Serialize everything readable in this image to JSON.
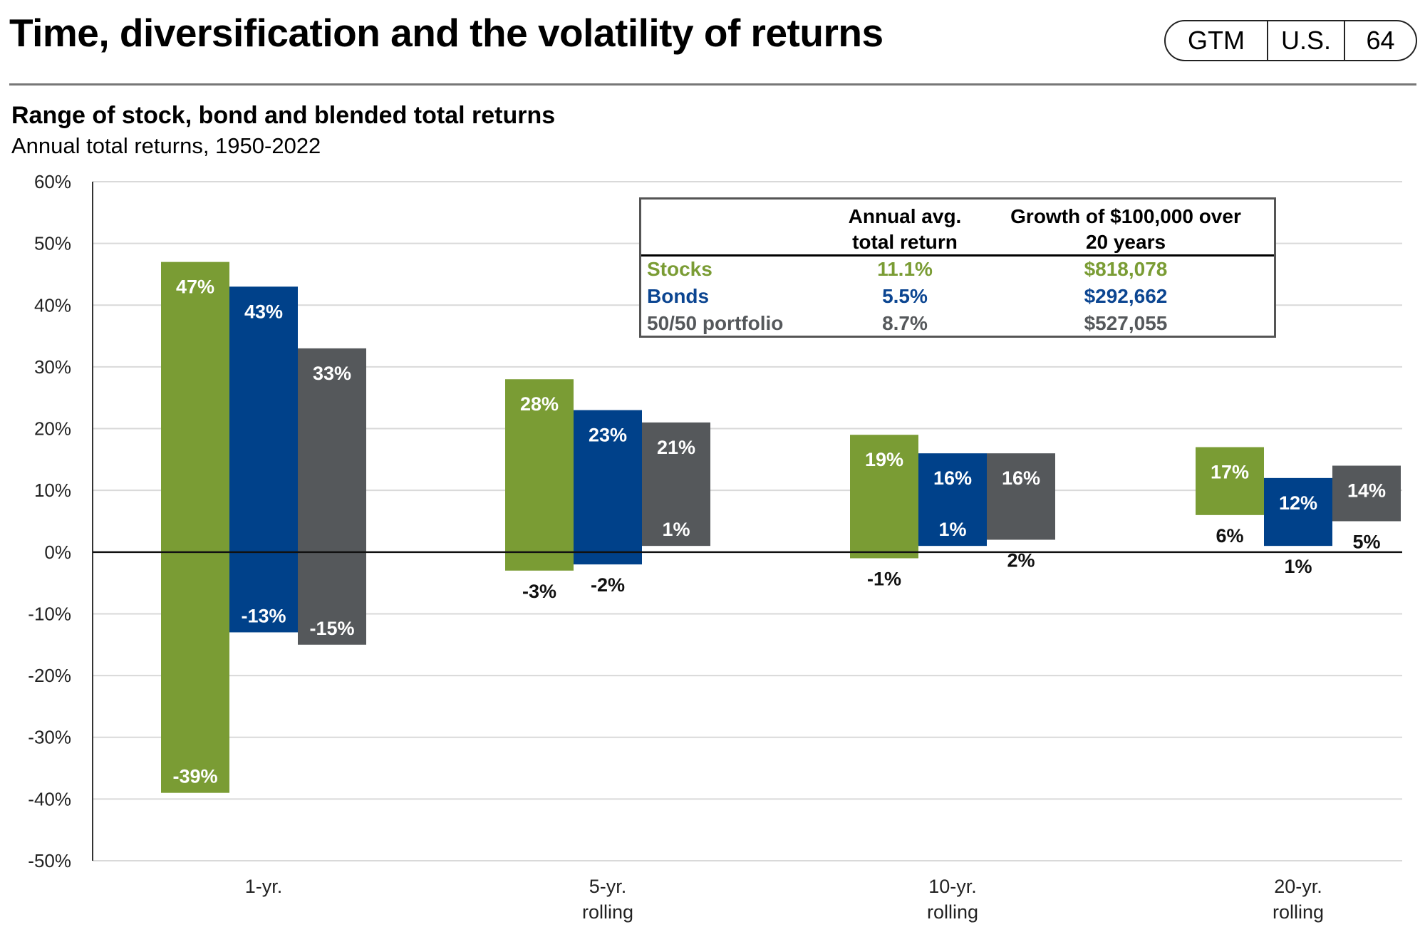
{
  "header": {
    "title": "Time, diversification and the volatility of returns",
    "badge": [
      "GTM",
      "U.S.",
      "64"
    ]
  },
  "subtitle": "Range of stock, bond and blended total returns",
  "subsubtitle": "Annual total returns, 1950-2022",
  "table": {
    "col_headers": [
      [
        "Annual avg.",
        "total return"
      ],
      [
        "Growth of $100,000 over",
        "20 years"
      ]
    ],
    "rows": [
      {
        "label": "Stocks",
        "avg": "11.1%",
        "growth": "$818,078",
        "color": "#7a9c34"
      },
      {
        "label": "Bonds",
        "avg": "5.5%",
        "growth": "$292,662",
        "color": "#0b4591"
      },
      {
        "label": "50/50 portfolio",
        "avg": "8.7%",
        "growth": "$527,055",
        "color": "#55585b"
      }
    ]
  },
  "chart_data": {
    "type": "floating-bar",
    "categories": [
      [
        "1-yr."
      ],
      [
        "5-yr.",
        "rolling"
      ],
      [
        "10-yr.",
        "rolling"
      ],
      [
        "20-yr.",
        "rolling"
      ]
    ],
    "ylim": [
      -50,
      60
    ],
    "yticks": [
      60,
      50,
      40,
      30,
      20,
      10,
      0,
      -10,
      -20,
      -30,
      -40,
      -50
    ],
    "grid": true,
    "series": [
      {
        "name": "Stocks",
        "color": "#7a9c34",
        "max": [
          47,
          28,
          19,
          17
        ],
        "min": [
          -39,
          -3,
          -1,
          6
        ]
      },
      {
        "name": "Bonds",
        "color": "#00418a",
        "max": [
          43,
          23,
          16,
          12
        ],
        "min": [
          -13,
          -2,
          1,
          1
        ]
      },
      {
        "name": "50/50 portfolio",
        "color": "#55585b",
        "max": [
          33,
          21,
          16,
          14
        ],
        "min": [
          -15,
          1,
          2,
          5
        ]
      }
    ]
  }
}
